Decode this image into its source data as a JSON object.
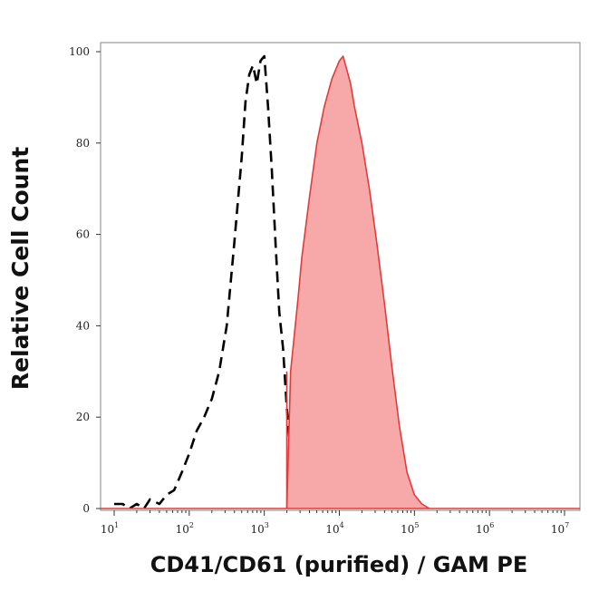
{
  "chart_data": {
    "type": "area",
    "title": "",
    "xlabel": "CD41/CD61 (purified) / GAM PE",
    "ylabel": "Relative Cell Count",
    "x_scale": "log",
    "xlim": [
      10,
      10000000
    ],
    "ylim": [
      0,
      100
    ],
    "x_ticks": [
      {
        "base": "10",
        "exp": "1",
        "value": 10
      },
      {
        "base": "10",
        "exp": "2",
        "value": 100
      },
      {
        "base": "10",
        "exp": "3",
        "value": 1000
      },
      {
        "base": "10",
        "exp": "4",
        "value": 10000
      },
      {
        "base": "10",
        "exp": "5",
        "value": 100000
      },
      {
        "base": "10",
        "exp": "6",
        "value": 1000000
      },
      {
        "base": "10",
        "exp": "7",
        "value": 10000000
      }
    ],
    "y_ticks": [
      "0",
      "20",
      "40",
      "60",
      "80",
      "100"
    ],
    "grid": false,
    "legend": "none",
    "series": [
      {
        "style": "dashed",
        "color": "#000000",
        "fill": "none",
        "x": [
          10,
          13,
          16,
          20,
          25,
          30,
          40,
          50,
          63,
          80,
          100,
          126,
          158,
          200,
          251,
          316,
          398,
          501,
          562,
          631,
          708,
          794,
          891,
          1000,
          1122,
          1259,
          1413,
          1585,
          1778,
          1995,
          2239,
          2512,
          2818,
          3162
        ],
        "y": [
          1,
          1,
          0,
          1,
          0,
          2,
          1,
          3,
          4,
          8,
          12,
          17,
          20,
          24,
          30,
          40,
          58,
          77,
          89,
          95,
          97,
          93,
          98,
          99,
          88,
          74,
          58,
          43,
          35,
          22,
          12,
          6,
          2,
          0
        ]
      },
      {
        "style": "filled",
        "color": "#e23b3b",
        "fill": "#f7a8a8",
        "x": [
          1995,
          2239,
          2512,
          2818,
          3162,
          3981,
          5012,
          6310,
          7943,
          10000,
          11220,
          12589,
          14125,
          15849,
          19953,
          25119,
          31623,
          39811,
          50119,
          63096,
          79433,
          100000,
          125893,
          158489
        ],
        "y": [
          0,
          30,
          38,
          46,
          55,
          68,
          80,
          88,
          94,
          98,
          99,
          96,
          93,
          88,
          80,
          70,
          58,
          45,
          31,
          18,
          8,
          3,
          1,
          0
        ]
      }
    ]
  }
}
